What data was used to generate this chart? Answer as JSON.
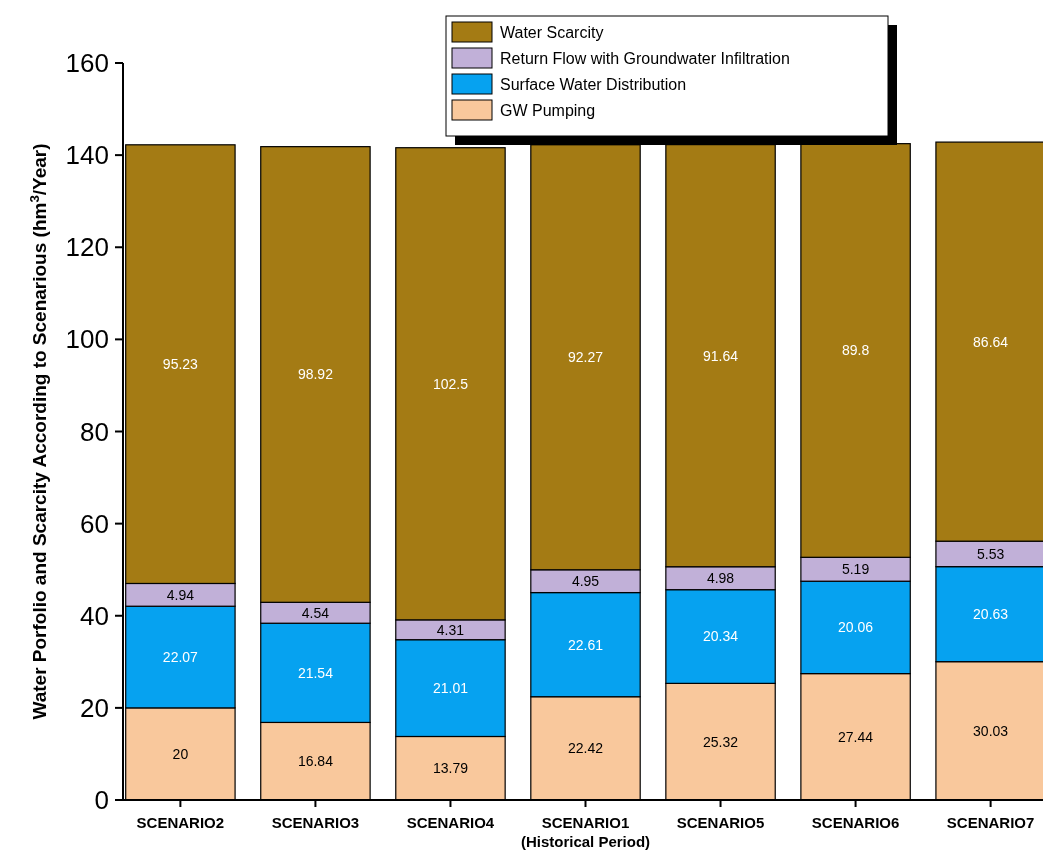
{
  "chart_data": {
    "type": "bar",
    "stacked": true,
    "ylabel": "Water Porfolio and Scarcity According to Scenarious (hm$^{3}$/Year)",
    "categories": [
      "SCENARIO2",
      "SCENARIO3",
      "SCENARIO4",
      "SCENARIO1\n(Historical Period)",
      "SCENARIO5",
      "SCENARIO6",
      "SCENARIO7"
    ],
    "series": [
      {
        "name": "GW Pumping",
        "color": "#f9c89c",
        "values": [
          20,
          16.84,
          13.79,
          22.42,
          25.32,
          27.44,
          30.03
        ]
      },
      {
        "name": "Surface Water Distribution",
        "color": "#06a2f0",
        "values": [
          22.07,
          21.54,
          21.01,
          22.61,
          20.34,
          20.06,
          20.63
        ]
      },
      {
        "name": "Return Flow with Groundwater Infiltration",
        "color": "#c1b0d8",
        "values": [
          4.94,
          4.54,
          4.31,
          4.95,
          4.98,
          5.19,
          5.53
        ]
      },
      {
        "name": "Water Scarcity",
        "color": "#a47b14",
        "values": [
          95.23,
          98.92,
          102.5,
          92.27,
          91.64,
          89.8,
          86.64
        ]
      }
    ],
    "ylim": [
      0,
      160
    ],
    "yticks": [
      0,
      20,
      40,
      60,
      80,
      100,
      120,
      140,
      160
    ],
    "grid": false,
    "legend": "top",
    "data_labels": true
  }
}
